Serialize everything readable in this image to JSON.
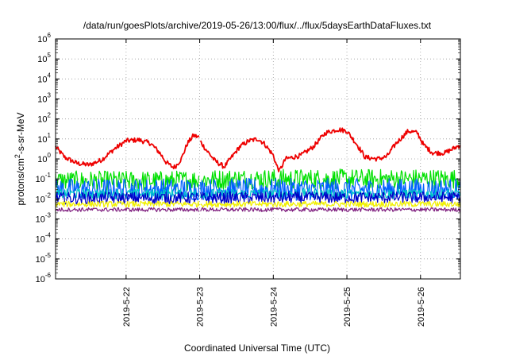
{
  "chart_data": {
    "type": "line",
    "title": "/data/run/goesPlots/archive/2019-05-26/13:00/flux/../flux/5daysEarthDataFluxes.txt",
    "xlabel": "Coordinated Universal Time (UTC)",
    "ylabel": "protons/cm²-s-sr-MeV",
    "ylabel_parts": {
      "pre": "protons/cm",
      "sup": "2",
      "post": "-s-sr-MeV"
    },
    "yscale": "log",
    "ylim": [
      1e-06,
      1000000.0
    ],
    "y_ticks": [
      {
        "base": "10",
        "exp": "-6"
      },
      {
        "base": "10",
        "exp": "-5"
      },
      {
        "base": "10",
        "exp": "-4"
      },
      {
        "base": "10",
        "exp": "-3"
      },
      {
        "base": "10",
        "exp": "-2"
      },
      {
        "base": "10",
        "exp": "-1"
      },
      {
        "base": "10",
        "exp": "0"
      },
      {
        "base": "10",
        "exp": "1"
      },
      {
        "base": "10",
        "exp": "2"
      },
      {
        "base": "10",
        "exp": "3"
      },
      {
        "base": "10",
        "exp": "4"
      },
      {
        "base": "10",
        "exp": "5"
      },
      {
        "base": "10",
        "exp": "6"
      }
    ],
    "xlim": [
      "2019-05-21T01:00",
      "2019-05-26T13:00"
    ],
    "x_ticks": [
      {
        "label": "2019-5-22",
        "date": "2019-05-22T00:00"
      },
      {
        "label": "2019-5-23",
        "date": "2019-05-23T00:00"
      },
      {
        "label": "2019-5-24",
        "date": "2019-05-24T00:00"
      },
      {
        "label": "2019-5-25",
        "date": "2019-05-25T00:00"
      },
      {
        "label": "2019-5-26",
        "date": "2019-05-26T00:00"
      }
    ],
    "grid": true,
    "data_gap": [
      "2019-05-22T23:50",
      "2019-05-23T00:05"
    ],
    "series": [
      {
        "color": "#ee0000",
        "noise": 0.12,
        "points": [
          [
            "2019-05-21T01:00",
            4.0
          ],
          [
            "2019-05-21T04:00",
            1.2
          ],
          [
            "2019-05-21T08:00",
            0.6
          ],
          [
            "2019-05-21T12:00",
            0.5
          ],
          [
            "2019-05-21T16:00",
            0.9
          ],
          [
            "2019-05-21T20:00",
            3.0
          ],
          [
            "2019-05-22T00:00",
            8.0
          ],
          [
            "2019-05-22T04:00",
            9.0
          ],
          [
            "2019-05-22T08:00",
            6.0
          ],
          [
            "2019-05-22T11:00",
            2.0
          ],
          [
            "2019-05-22T13:00",
            0.7
          ],
          [
            "2019-05-22T15:00",
            0.4
          ],
          [
            "2019-05-22T16:00",
            0.4
          ],
          [
            "2019-05-22T18:00",
            1.0
          ],
          [
            "2019-05-22T20:00",
            6.0
          ],
          [
            "2019-05-22T22:00",
            15.0
          ],
          [
            "2019-05-22T23:50",
            12.0
          ],
          [
            "2019-05-23T00:05",
            8.0
          ],
          [
            "2019-05-23T02:00",
            3.0
          ],
          [
            "2019-05-23T05:00",
            0.8
          ],
          [
            "2019-05-23T08:00",
            0.4
          ],
          [
            "2019-05-23T10:00",
            1.0
          ],
          [
            "2019-05-23T13:00",
            4.0
          ],
          [
            "2019-05-23T16:00",
            8.0
          ],
          [
            "2019-05-23T19:00",
            10.0
          ],
          [
            "2019-05-23T21:00",
            6.0
          ],
          [
            "2019-05-24T00:00",
            1.5
          ],
          [
            "2019-05-24T01:00",
            0.5
          ],
          [
            "2019-05-24T02:00",
            0.25
          ],
          [
            "2019-05-24T04:00",
            1.0
          ],
          [
            "2019-05-24T09:00",
            1.5
          ],
          [
            "2019-05-24T13:00",
            4.0
          ],
          [
            "2019-05-24T17:00",
            20.0
          ],
          [
            "2019-05-24T21:00",
            30.0
          ],
          [
            "2019-05-25T00:00",
            25.0
          ],
          [
            "2019-05-25T03:00",
            6.0
          ],
          [
            "2019-05-25T06:00",
            1.2
          ],
          [
            "2019-05-25T10:00",
            1.0
          ],
          [
            "2019-05-25T13:00",
            1.3
          ],
          [
            "2019-05-25T16:00",
            6.0
          ],
          [
            "2019-05-25T20:00",
            25.0
          ],
          [
            "2019-05-25T23:00",
            20.0
          ],
          [
            "2019-05-26T01:00",
            5.0
          ],
          [
            "2019-05-26T04:00",
            2.0
          ],
          [
            "2019-05-26T08:00",
            2.0
          ],
          [
            "2019-05-26T13:00",
            5.0
          ]
        ]
      },
      {
        "color": "#00e000",
        "noise": 0.5,
        "points": [
          [
            "2019-05-21T01:00",
            0.08
          ],
          [
            "2019-05-22T12:00",
            0.08
          ],
          [
            "2019-05-23T12:00",
            0.1
          ],
          [
            "2019-05-26T13:00",
            0.1
          ]
        ]
      },
      {
        "color": "#0060ff",
        "noise": 0.55,
        "points": [
          [
            "2019-05-21T01:00",
            0.03
          ],
          [
            "2019-05-26T13:00",
            0.03
          ]
        ]
      },
      {
        "color": "#00c8c8",
        "noise": 0.25,
        "points": [
          [
            "2019-05-21T01:00",
            0.018
          ],
          [
            "2019-05-26T13:00",
            0.018
          ]
        ]
      },
      {
        "color": "#0000c8",
        "noise": 0.3,
        "points": [
          [
            "2019-05-21T01:00",
            0.011
          ],
          [
            "2019-05-26T13:00",
            0.012
          ]
        ]
      },
      {
        "color": "#f0f000",
        "noise": 0.15,
        "points": [
          [
            "2019-05-21T01:00",
            0.0055
          ],
          [
            "2019-05-26T13:00",
            0.0055
          ]
        ]
      },
      {
        "color": "#802080",
        "noise": 0.1,
        "points": [
          [
            "2019-05-21T01:00",
            0.0029
          ],
          [
            "2019-05-26T13:00",
            0.0029
          ]
        ]
      }
    ]
  }
}
